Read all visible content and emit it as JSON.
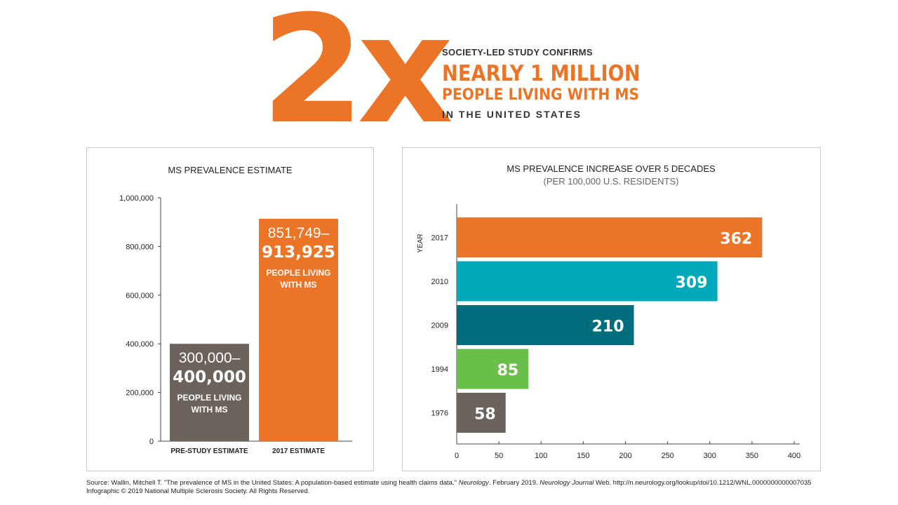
{
  "hero": {
    "big": "2x",
    "line1": "SOCIETY-LED STUDY CONFIRMS",
    "line2": "NEARLY 1 MILLION",
    "line3": "PEOPLE LIVING WITH MS",
    "line4": "IN THE UNITED STATES"
  },
  "colors": {
    "orange": "#eb7427",
    "gray": "#6b625c",
    "teal": "#00a9b9",
    "dark_teal": "#006d7c",
    "green": "#6abf4b"
  },
  "chart_data": [
    {
      "type": "bar",
      "title": "MS PREVALENCE ESTIMATE",
      "ylim": [
        0,
        1000000
      ],
      "yticks": [
        "0",
        "200,000",
        "400,000",
        "600,000",
        "800,000",
        "1,000,000"
      ],
      "bars": [
        {
          "category": "PRE-STUDY ESTIMATE",
          "value": 400000,
          "range_low": "300,000–",
          "range_high": "400,000",
          "label_line1": "PEOPLE LIVING",
          "label_line2": "WITH MS",
          "color": "#6b625c"
        },
        {
          "category": "2017 ESTIMATE",
          "value": 913925,
          "range_low": "851,749–",
          "range_high": "913,925",
          "label_line1": "PEOPLE LIVING",
          "label_line2": "WITH MS",
          "color": "#eb7427"
        }
      ]
    },
    {
      "type": "bar",
      "orientation": "horizontal",
      "title": "MS PREVALENCE INCREASE OVER 5 DECADES",
      "subtitle": "(PER 100,000 U.S. RESIDENTS)",
      "ylabel": "YEAR",
      "xlim": [
        0,
        400
      ],
      "xticks": [
        "0",
        "50",
        "100",
        "150",
        "200",
        "250",
        "300",
        "350",
        "400"
      ],
      "bars": [
        {
          "category": "2017",
          "value": 362,
          "label": "362",
          "color": "#eb7427"
        },
        {
          "category": "2010",
          "value": 309,
          "label": "309",
          "color": "#00a9b9"
        },
        {
          "category": "2009",
          "value": 210,
          "label": "210",
          "color": "#006d7c"
        },
        {
          "category": "1994",
          "value": 85,
          "label": "85",
          "color": "#6abf4b"
        },
        {
          "category": "1976",
          "value": 58,
          "label": "58",
          "color": "#6b625c"
        }
      ]
    }
  ],
  "source": {
    "prefix": "Source: Wallin, Mitchell T. \"The prevalence of MS in the United States: A population-based estimate using health claims data.\"",
    "journal": "Neurology",
    "mid": ". February 2019.",
    "journal_web": "Neurology Journal",
    "suffix": "Web. http://n.neurology.org/lookup/doi/10.1212/WNL.0000000000007035",
    "copyright": "Infographic © 2019 National Multiple Sclerosis Society. All Rights Reserved."
  }
}
